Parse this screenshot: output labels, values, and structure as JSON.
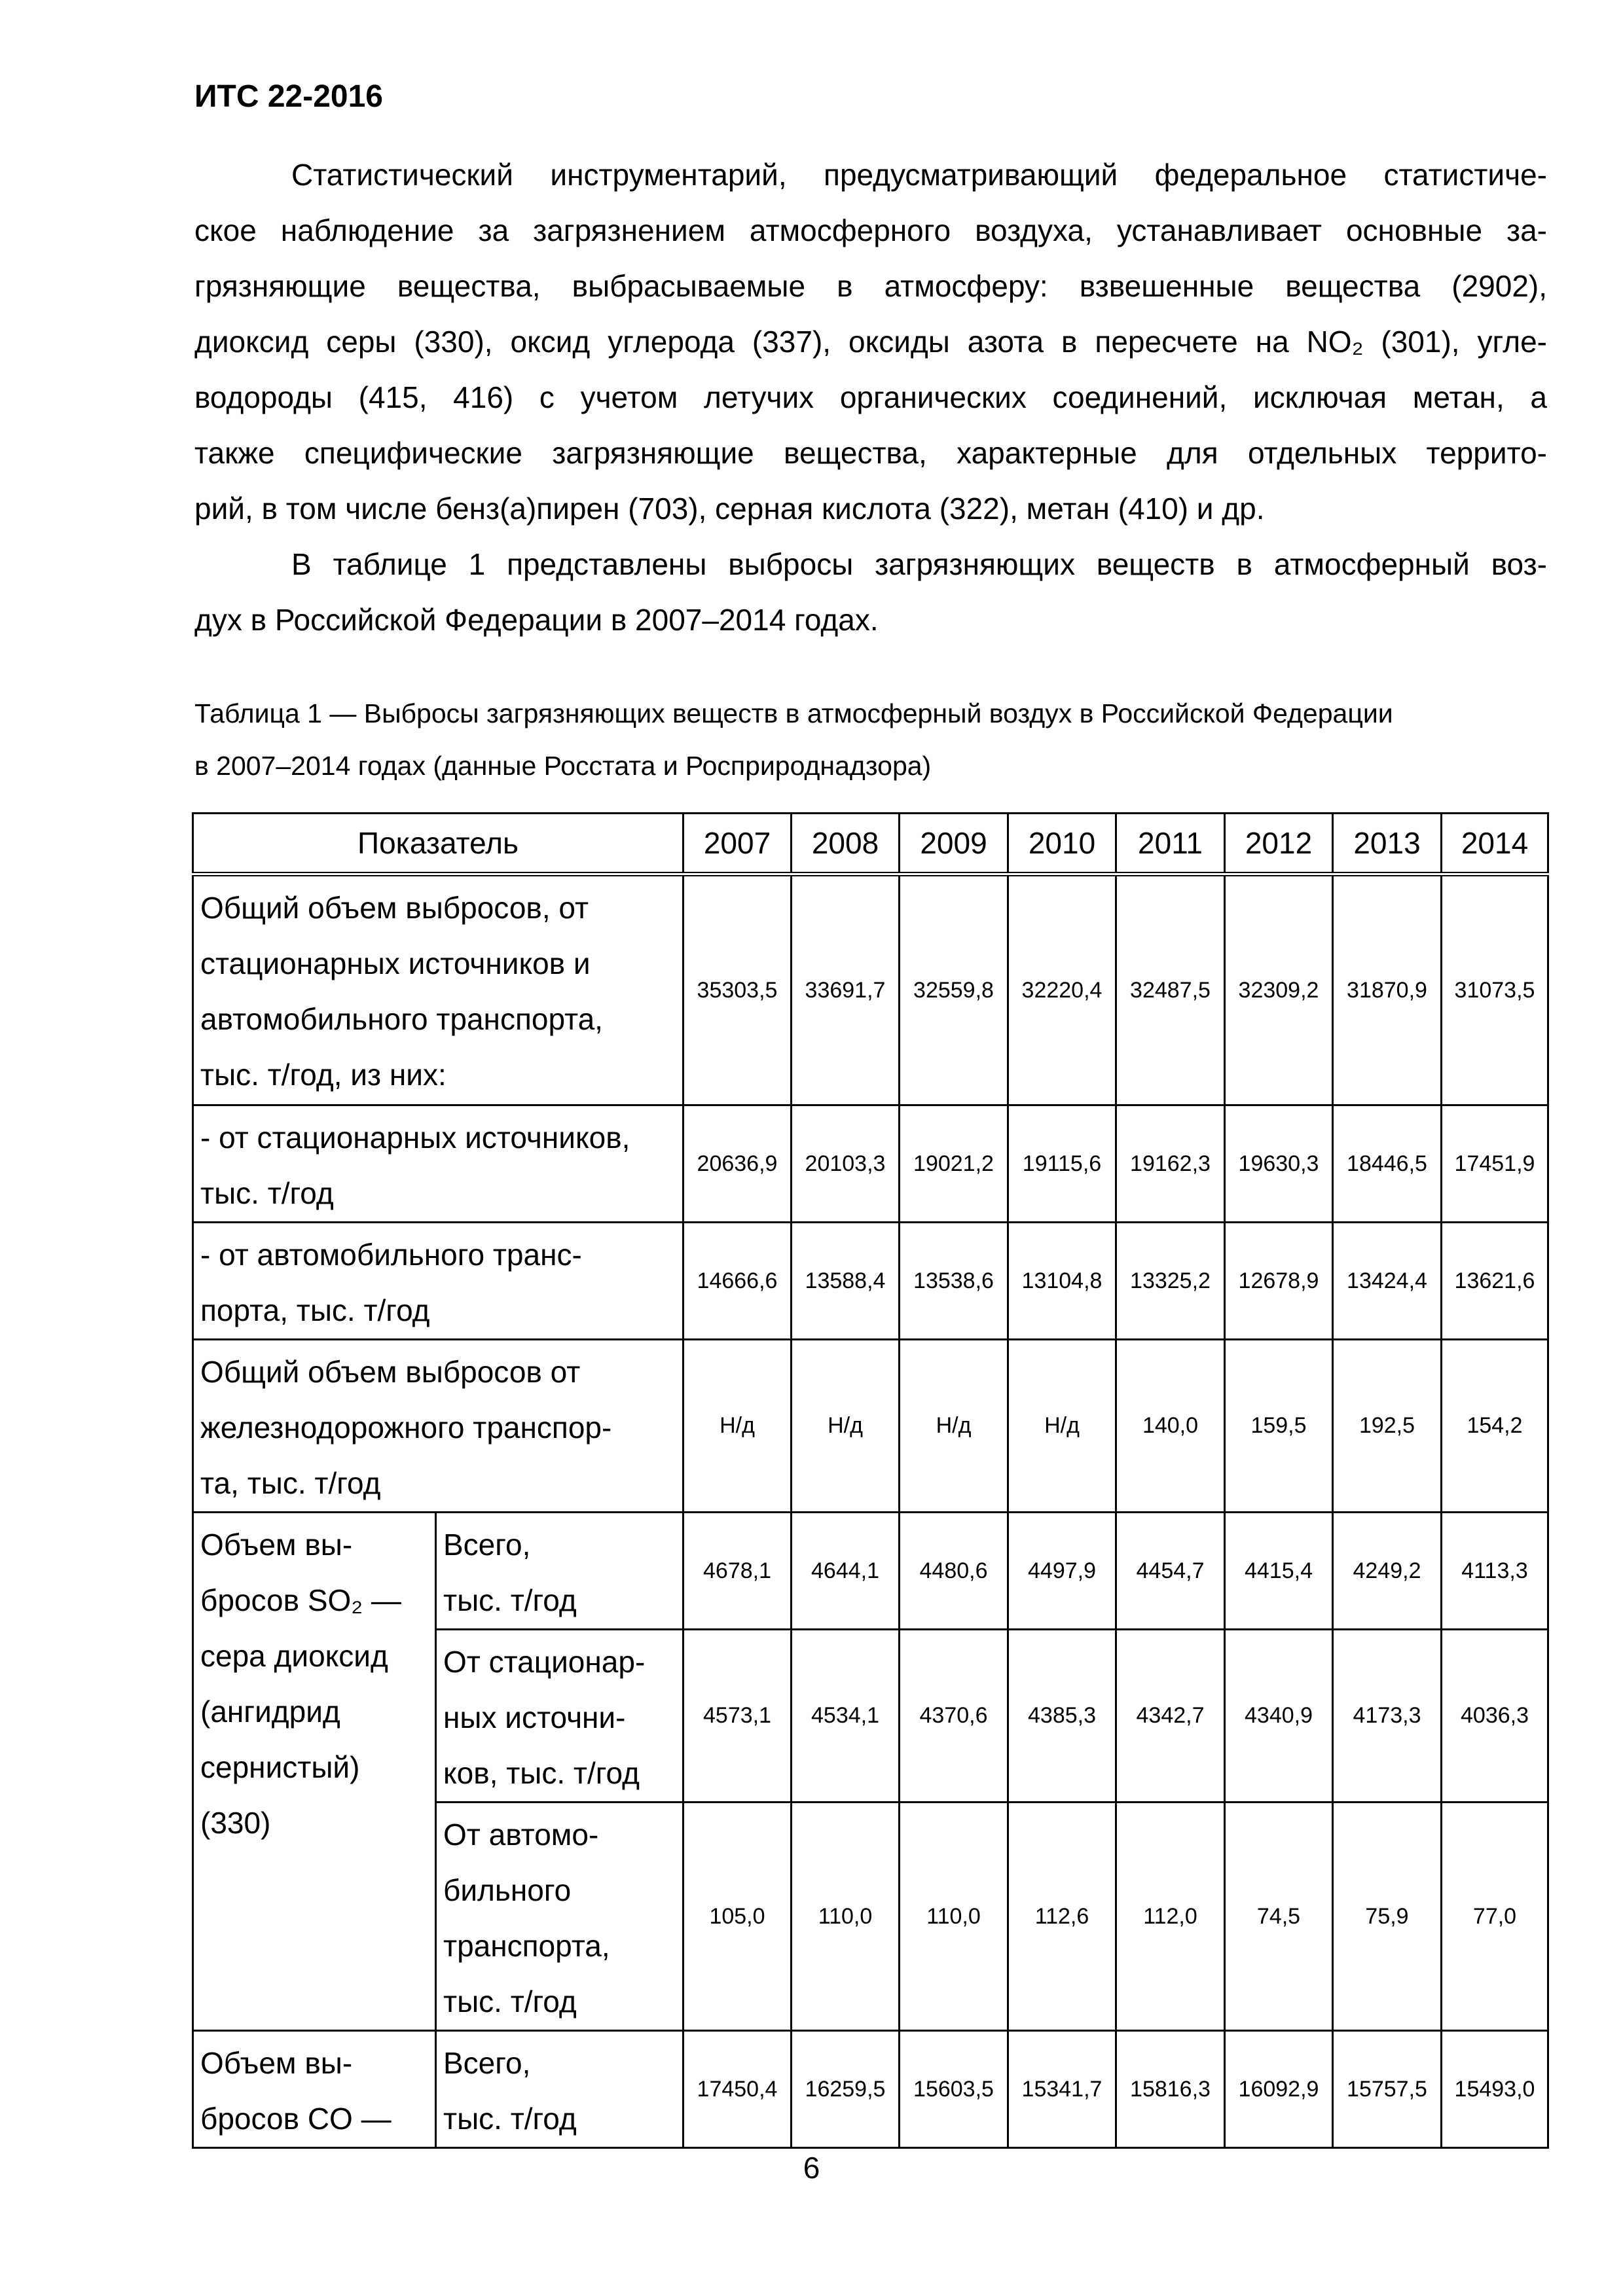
{
  "header": {
    "code": "ИТС 22-2016"
  },
  "paragraphs": [
    {
      "lines": [
        "Статистический инструментарий, предусматривающий федеральное статистиче-",
        "ское наблюдение за загрязнением атмосферного воздуха, устанавливает основные за-",
        "грязняющие вещества, выбрасываемые в атмосферу: взвешенные вещества (2902),",
        "диоксид серы (330), оксид углерода (337), оксиды азота в пересчете на NO₂ (301), угле-",
        "водороды (415, 416) с учетом летучих органических соединений, исключая метан, а",
        "также специфические загрязняющие вещества, характерные для отдельных террито-",
        "рий, в том числе бенз(а)пирен (703), серная кислота (322), метан (410) и др."
      ]
    },
    {
      "lines": [
        "В таблице 1 представлены выбросы загрязняющих веществ в атмосферный воз-",
        "дух в Российской Федерации в 2007–2014 годах."
      ]
    }
  ],
  "caption": {
    "lines": [
      "Таблица 1 — Выбросы загрязняющих веществ в атмосферный воздух в Российской Федерации",
      "в 2007–2014 годах (данные Росстата и Росприроднадзора)"
    ]
  },
  "table": {
    "header_label": "Показатель",
    "years": [
      "2007",
      "2008",
      "2009",
      "2010",
      "2011",
      "2012",
      "2013",
      "2014"
    ],
    "rows": [
      {
        "label": "Общий объем выбросов, от\nстационарных источников и\nавтомобильного транспорта,\nтыс. т/год, из них:",
        "values": [
          "35303,5",
          "33691,7",
          "32559,8",
          "32220,4",
          "32487,5",
          "32309,2",
          "31870,9",
          "31073,5"
        ]
      },
      {
        "label": "- от стационарных источников,\nтыс. т/год",
        "values": [
          "20636,9",
          "20103,3",
          "19021,2",
          "19115,6",
          "19162,3",
          "19630,3",
          "18446,5",
          "17451,9"
        ]
      },
      {
        "label": "- от автомобильного транс-\nпорта, тыс. т/год",
        "values": [
          "14666,6",
          "13588,4",
          "13538,6",
          "13104,8",
          "13325,2",
          "12678,9",
          "13424,4",
          "13621,6"
        ]
      },
      {
        "label": "Общий объем выбросов от\nжелезнодорожного транспор-\nта, тыс. т/год",
        "values": [
          "Н/д",
          "Н/д",
          "Н/д",
          "Н/д",
          "140,0",
          "159,5",
          "192,5",
          "154,2"
        ]
      },
      {
        "group": "Объем вы-\nбросов SO₂ —\nсера диоксид\n(ангидрид\nсернистый)\n(330)",
        "group_span": 3,
        "sub": "Всего,\nтыс. т/год",
        "values": [
          "4678,1",
          "4644,1",
          "4480,6",
          "4497,9",
          "4454,7",
          "4415,4",
          "4249,2",
          "4113,3"
        ]
      },
      {
        "sub": "От стационар-\nных источни-\nков, тыс. т/год",
        "values": [
          "4573,1",
          "4534,1",
          "4370,6",
          "4385,3",
          "4342,7",
          "4340,9",
          "4173,3",
          "4036,3"
        ]
      },
      {
        "sub": "От автомо-\nбильного\nтранспорта,\nтыс. т/год",
        "values": [
          "105,0",
          "110,0",
          "110,0",
          "112,6",
          "112,0",
          "74,5",
          "75,9",
          "77,0"
        ]
      },
      {
        "group": "Объем вы-\nбросов CO —",
        "group_span": 1,
        "sub": "Всего,\nтыс. т/год",
        "values": [
          "17450,4",
          "16259,5",
          "15603,5",
          "15341,7",
          "15816,3",
          "16092,9",
          "15757,5",
          "15493,0"
        ]
      }
    ]
  },
  "page_number": "6"
}
